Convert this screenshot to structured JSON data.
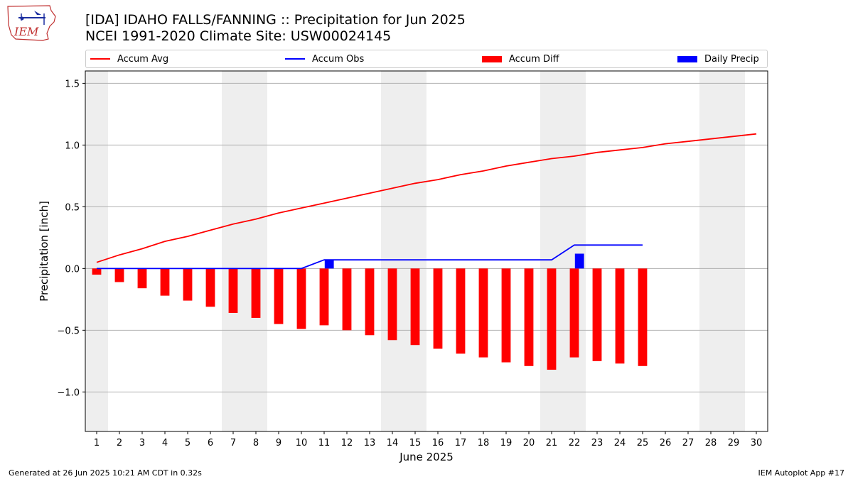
{
  "header": {
    "title_line1": "[IDA] IDAHO FALLS/FANNING :: Precipitation for Jun 2025",
    "title_line2": "NCEI 1991-2020 Climate Site: USW00024145"
  },
  "logo": {
    "text": "IEM"
  },
  "footer": {
    "generated": "Generated at 26 Jun 2025 10:21 AM CDT in 0.32s",
    "app": "IEM Autoplot App #17"
  },
  "chart_data": {
    "type": "bar",
    "xlabel": "June 2025",
    "ylabel": "Precipitation [inch]",
    "ylim": [
      -1.32,
      1.6
    ],
    "xlim": [
      0.5,
      30.5
    ],
    "yticks": [
      -1.0,
      -0.5,
      0.0,
      0.5,
      1.0,
      1.5
    ],
    "ytick_labels": [
      "−1.0",
      "−0.5",
      "0.0",
      "0.5",
      "1.0",
      "1.5"
    ],
    "days": [
      1,
      2,
      3,
      4,
      5,
      6,
      7,
      8,
      9,
      10,
      11,
      12,
      13,
      14,
      15,
      16,
      17,
      18,
      19,
      20,
      21,
      22,
      23,
      24,
      25,
      26,
      27,
      28,
      29,
      30
    ],
    "grid": "horizontal",
    "weekend_shading": [
      [
        0.5,
        1.5
      ],
      [
        6.5,
        8.5
      ],
      [
        13.5,
        15.5
      ],
      [
        20.5,
        22.5
      ],
      [
        27.5,
        29.5
      ]
    ],
    "colors": {
      "avg": "#ff0000",
      "obs": "#0000ff",
      "diff": "#ff0000",
      "daily": "#0000ff",
      "shade": "#eeeeee",
      "grid": "#b0b0b0"
    },
    "legend": [
      "Accum Avg",
      "Accum Obs",
      "Accum Diff",
      "Daily Precip"
    ],
    "series": [
      {
        "name": "Accum Avg",
        "kind": "line",
        "x": [
          1,
          2,
          3,
          4,
          5,
          6,
          7,
          8,
          9,
          10,
          11,
          12,
          13,
          14,
          15,
          16,
          17,
          18,
          19,
          20,
          21,
          22,
          23,
          24,
          25,
          26,
          27,
          28,
          29,
          30
        ],
        "values": [
          0.05,
          0.11,
          0.16,
          0.22,
          0.26,
          0.31,
          0.36,
          0.4,
          0.45,
          0.49,
          0.53,
          0.57,
          0.61,
          0.65,
          0.69,
          0.72,
          0.76,
          0.79,
          0.83,
          0.86,
          0.89,
          0.91,
          0.94,
          0.96,
          0.98,
          1.01,
          1.03,
          1.05,
          1.07,
          1.09
        ]
      },
      {
        "name": "Accum Obs",
        "kind": "line",
        "x": [
          1,
          2,
          3,
          4,
          5,
          6,
          7,
          8,
          9,
          10,
          11,
          12,
          13,
          14,
          15,
          16,
          17,
          18,
          19,
          20,
          21,
          22,
          23,
          24,
          25
        ],
        "values": [
          0,
          0,
          0,
          0,
          0,
          0,
          0,
          0,
          0,
          0,
          0.07,
          0.07,
          0.07,
          0.07,
          0.07,
          0.07,
          0.07,
          0.07,
          0.07,
          0.07,
          0.07,
          0.19,
          0.19,
          0.19,
          0.19
        ]
      },
      {
        "name": "Accum Diff",
        "kind": "bar",
        "x": [
          1,
          2,
          3,
          4,
          5,
          6,
          7,
          8,
          9,
          10,
          11,
          12,
          13,
          14,
          15,
          16,
          17,
          18,
          19,
          20,
          21,
          22,
          23,
          24,
          25
        ],
        "values": [
          -0.05,
          -0.11,
          -0.16,
          -0.22,
          -0.26,
          -0.31,
          -0.36,
          -0.4,
          -0.45,
          -0.49,
          -0.46,
          -0.5,
          -0.54,
          -0.58,
          -0.62,
          -0.65,
          -0.69,
          -0.72,
          -0.76,
          -0.79,
          -0.82,
          -0.72,
          -0.75,
          -0.77,
          -0.79
        ]
      },
      {
        "name": "Daily Precip",
        "kind": "bar",
        "x": [
          11,
          22
        ],
        "values": [
          0.07,
          0.12
        ]
      }
    ]
  }
}
